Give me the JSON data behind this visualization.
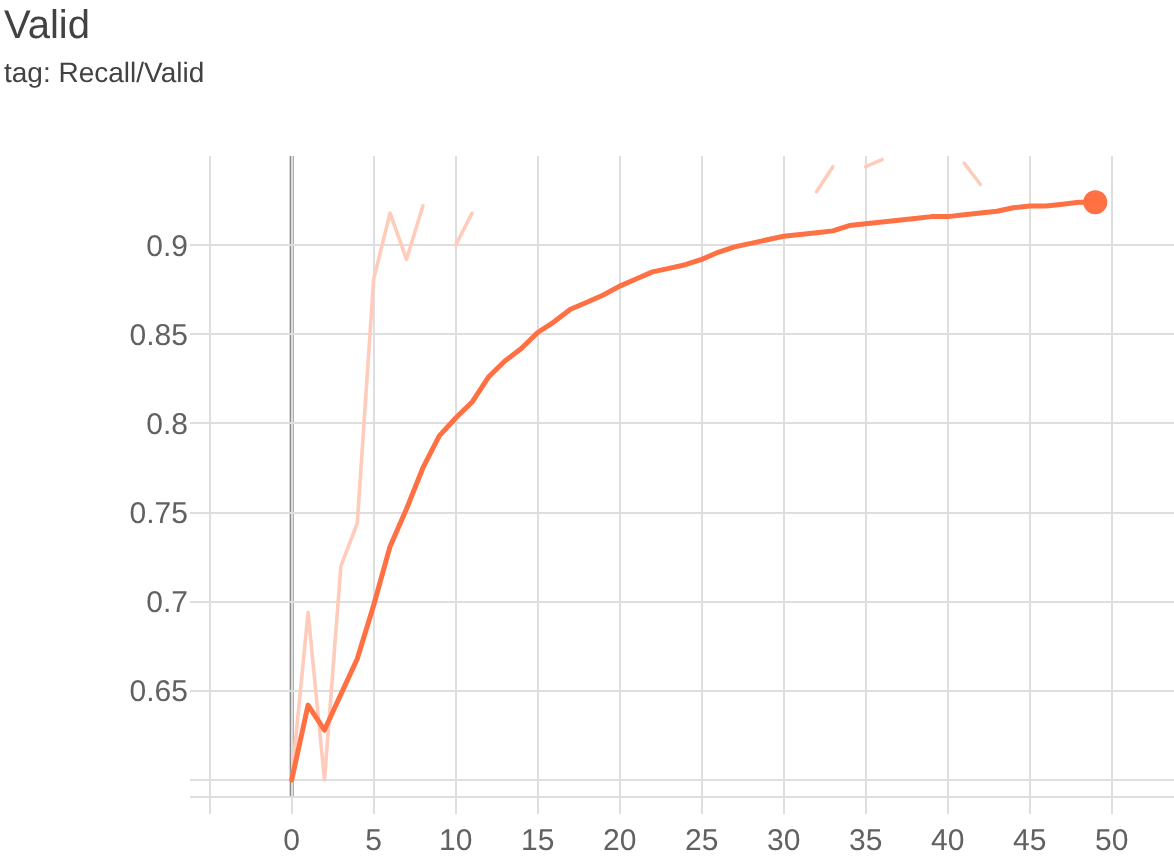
{
  "chart_data": {
    "type": "line",
    "title": "Valid",
    "subtitle": "tag: Recall/Valid",
    "x": [
      0,
      1,
      2,
      3,
      4,
      5,
      6,
      7,
      8,
      9,
      10,
      11,
      12,
      13,
      14,
      15,
      16,
      17,
      18,
      19,
      20,
      21,
      22,
      23,
      24,
      25,
      26,
      27,
      28,
      29,
      30,
      31,
      32,
      33,
      34,
      35,
      36,
      37,
      38,
      39,
      40,
      41,
      42,
      43,
      44,
      45,
      46,
      47,
      48,
      49
    ],
    "series": [
      {
        "color": "#ffccbc",
        "values": [
          0.6,
          0.694,
          0.6,
          0.72,
          0.744,
          0.881,
          0.918,
          0.892,
          0.922,
          null,
          0.9,
          0.918,
          null,
          null,
          null,
          null,
          null,
          null,
          null,
          null,
          null,
          null,
          null,
          null,
          null,
          null,
          null,
          null,
          null,
          null,
          null,
          null,
          0.93,
          0.944,
          null,
          0.944,
          0.948,
          null,
          null,
          null,
          null,
          0.946,
          0.934,
          null,
          null,
          null,
          null,
          null,
          null,
          null
        ]
      },
      {
        "color": "#ff7043",
        "values": [
          0.6,
          0.642,
          0.628,
          0.648,
          0.668,
          0.698,
          0.731,
          0.752,
          0.775,
          0.793,
          0.803,
          0.812,
          0.826,
          0.835,
          0.842,
          0.851,
          0.857,
          0.864,
          0.868,
          0.872,
          0.877,
          0.881,
          0.885,
          0.887,
          0.889,
          0.892,
          0.896,
          0.899,
          0.901,
          0.903,
          0.905,
          0.906,
          0.907,
          0.908,
          0.911,
          0.912,
          0.913,
          0.914,
          0.915,
          0.916,
          0.916,
          0.917,
          0.918,
          0.919,
          0.921,
          0.922,
          0.922,
          0.923,
          0.924,
          0.924
        ]
      },
      {
        "type": "scatter",
        "marker": "circle",
        "color": "#ff7043",
        "x": [
          49
        ],
        "values": [
          0.924
        ]
      }
    ],
    "xlim": [
      -6.2,
      53.8
    ],
    "xticks": [
      {
        "value": -5,
        "label": null
      },
      0,
      5,
      10,
      15,
      20,
      25,
      30,
      35,
      40,
      45,
      50
    ],
    "ylim": [
      0.591,
      0.95
    ],
    "yticks": [
      {
        "value": 0.6,
        "label": null
      },
      0.65,
      0.7,
      0.75,
      0.8,
      0.85,
      0.9
    ],
    "ref_lines": [
      {
        "axis": "x",
        "value": 0,
        "color": "#8a8a8a"
      }
    ],
    "grid": true,
    "legend": false,
    "marker": "none",
    "line_style": "solid"
  }
}
